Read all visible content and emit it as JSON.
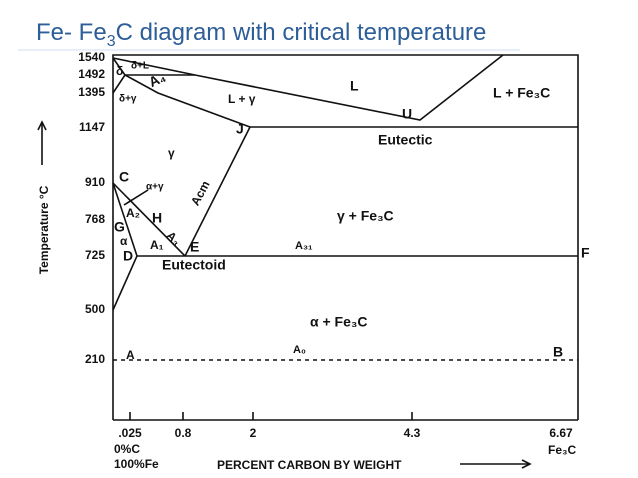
{
  "title": {
    "before": "Fe- Fe",
    "subscript": "3",
    "after": "C diagram with critical temperature"
  },
  "y_axis": {
    "label": "Temperature °C",
    "ticks": [
      "1540",
      "1492",
      "1395",
      "1147",
      "910",
      "768",
      "725",
      "500",
      "210"
    ]
  },
  "x_axis": {
    "label": "PERCENT CARBON BY WEIGHT",
    "ticks": [
      ".025",
      "0.8",
      "2",
      "4.3",
      "6.67"
    ],
    "origin_labels": [
      "0%C",
      "100%Fe"
    ],
    "end_label": "Fe₃C"
  },
  "regions": [
    "δ",
    "δ+L",
    "δ+γ",
    "L",
    "L + γ",
    "L + Fe₃C",
    "γ",
    "α+γ",
    "γ + Fe₃C",
    "α",
    "α + Fe₃C"
  ],
  "reactions": [
    "Eutectic",
    "Eutectoid"
  ],
  "points": [
    "U",
    "J",
    "C",
    "G",
    "H",
    "D",
    "E",
    "F",
    "A",
    "B"
  ],
  "critical_lines": [
    "A₄",
    "A₃",
    "A₂",
    "A₁",
    "Acm",
    "A₃₁",
    "A₀"
  ]
}
